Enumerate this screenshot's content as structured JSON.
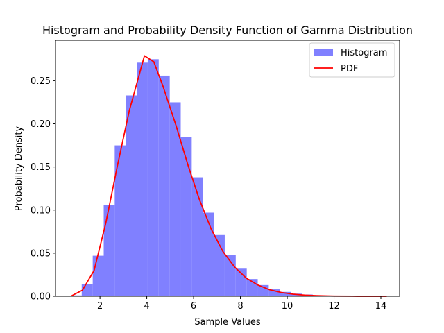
{
  "chart_data": {
    "type": "bar",
    "title": "Histogram and Probability Density Function of Gamma Distribution",
    "xlabel": "Sample Values",
    "ylabel": "Probability Density",
    "xlim": [
      0.1,
      14.8
    ],
    "ylim": [
      0,
      0.297
    ],
    "xticks": [
      2,
      4,
      6,
      8,
      10,
      12,
      14
    ],
    "yticks": [
      0.0,
      0.05,
      0.1,
      0.15,
      0.2,
      0.25
    ],
    "xtick_labels": [
      "2",
      "4",
      "6",
      "8",
      "10",
      "12",
      "14"
    ],
    "ytick_labels": [
      "0.00",
      "0.05",
      "0.10",
      "0.15",
      "0.20",
      "0.25"
    ],
    "grid": false,
    "legend_position": "top-right",
    "colors": {
      "histogram": "#8080ff",
      "pdf": "#ff0000",
      "axes": "#000000"
    },
    "histogram": {
      "name": "Histogram",
      "bin_edges": [
        0.75,
        1.22,
        1.69,
        2.16,
        2.63,
        3.1,
        3.57,
        4.04,
        4.51,
        4.98,
        5.45,
        5.92,
        6.39,
        6.86,
        7.33,
        7.8,
        8.27,
        8.74,
        9.21,
        9.68,
        10.15,
        10.62,
        11.09,
        11.56,
        12.03,
        12.5,
        12.97,
        13.44,
        13.91,
        14.25
      ],
      "values": [
        0.001,
        0.014,
        0.047,
        0.106,
        0.175,
        0.233,
        0.271,
        0.275,
        0.256,
        0.225,
        0.185,
        0.138,
        0.097,
        0.071,
        0.048,
        0.032,
        0.02,
        0.013,
        0.008,
        0.005,
        0.003,
        0.002,
        0.001,
        0.0007,
        0.0004,
        0.0003,
        0.0002,
        0.0001,
        0.0001
      ]
    },
    "pdf": {
      "name": "PDF",
      "x": [
        0.75,
        1.25,
        1.75,
        2.25,
        2.75,
        3.25,
        3.9,
        4.3,
        4.7,
        5.25,
        5.75,
        6.25,
        6.75,
        7.25,
        7.75,
        8.25,
        8.75,
        9.25,
        9.75,
        10.25,
        10.75,
        11.25,
        12.0,
        13.0,
        14.25
      ],
      "y": [
        0.0,
        0.007,
        0.03,
        0.085,
        0.152,
        0.215,
        0.279,
        0.272,
        0.243,
        0.198,
        0.153,
        0.112,
        0.078,
        0.052,
        0.034,
        0.021,
        0.013,
        0.0075,
        0.0043,
        0.0024,
        0.0013,
        0.0007,
        0.0002,
        5e-05,
        0.0
      ]
    }
  }
}
